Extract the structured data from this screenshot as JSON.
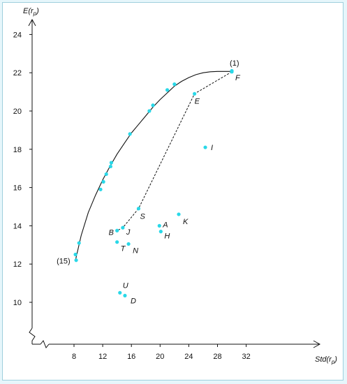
{
  "chart_data": {
    "type": "scatter",
    "xlabel": "Std(r",
    "xlabel_sub": "p",
    "xlabel_close": ")",
    "ylabel": "E(r",
    "ylabel_sub": "p",
    "ylabel_close": ")",
    "xlim": [
      4.5,
      33.5
    ],
    "ylim": [
      7.3,
      25.0
    ],
    "axis_break": true,
    "xticks": [
      8,
      12,
      16,
      20,
      24,
      28,
      32
    ],
    "yticks": [
      10,
      12,
      14,
      16,
      18,
      20,
      22,
      24
    ],
    "xtick_labels": [
      "8",
      "12",
      "16",
      "20",
      "24",
      "28",
      "32"
    ],
    "ytick_labels": [
      "10",
      "12",
      "14",
      "16",
      "18",
      "20",
      "22",
      "24"
    ],
    "point_color": "#29d8e8",
    "frontier_points": [
      {
        "x": 8.3,
        "y": 12.2
      },
      {
        "x": 8.2,
        "y": 12.5
      },
      {
        "x": 8.7,
        "y": 13.1
      },
      {
        "x": 11.7,
        "y": 15.9
      },
      {
        "x": 12.1,
        "y": 16.3
      },
      {
        "x": 12.5,
        "y": 16.7
      },
      {
        "x": 13.1,
        "y": 17.1
      },
      {
        "x": 13.2,
        "y": 17.3
      },
      {
        "x": 15.8,
        "y": 18.8
      },
      {
        "x": 18.5,
        "y": 20.0
      },
      {
        "x": 19.0,
        "y": 20.3
      },
      {
        "x": 21.0,
        "y": 21.1
      },
      {
        "x": 22.0,
        "y": 21.4
      },
      {
        "x": 30.0,
        "y": 22.1
      }
    ],
    "frontier_curve": [
      {
        "x": 8.2,
        "y": 12.2
      },
      {
        "x": 9.0,
        "y": 13.5
      },
      {
        "x": 10.0,
        "y": 14.7
      },
      {
        "x": 11.0,
        "y": 15.6
      },
      {
        "x": 12.0,
        "y": 16.4
      },
      {
        "x": 13.0,
        "y": 17.1
      },
      {
        "x": 14.0,
        "y": 17.75
      },
      {
        "x": 15.0,
        "y": 18.3
      },
      {
        "x": 16.0,
        "y": 18.85
      },
      {
        "x": 17.0,
        "y": 19.3
      },
      {
        "x": 18.0,
        "y": 19.75
      },
      {
        "x": 19.0,
        "y": 20.2
      },
      {
        "x": 20.0,
        "y": 20.6
      },
      {
        "x": 21.0,
        "y": 20.95
      },
      {
        "x": 22.0,
        "y": 21.3
      },
      {
        "x": 23.0,
        "y": 21.55
      },
      {
        "x": 24.0,
        "y": 21.75
      },
      {
        "x": 25.0,
        "y": 21.9
      },
      {
        "x": 26.0,
        "y": 22.0
      },
      {
        "x": 27.0,
        "y": 22.05
      },
      {
        "x": 28.0,
        "y": 22.07
      },
      {
        "x": 29.0,
        "y": 22.07
      },
      {
        "x": 30.0,
        "y": 22.07
      }
    ],
    "dashed_path": [
      {
        "x": 30.0,
        "y": 22.05
      },
      {
        "x": 24.8,
        "y": 20.9
      },
      {
        "x": 17.0,
        "y": 14.9
      },
      {
        "x": 14.8,
        "y": 13.9
      },
      {
        "x": 14.0,
        "y": 13.75
      }
    ],
    "labeled_points": [
      {
        "label": "F",
        "x": 30.0,
        "y": 22.05,
        "dx": 5,
        "dy": 12
      },
      {
        "label": "E",
        "x": 24.8,
        "y": 20.9,
        "dx": 0,
        "dy": 14
      },
      {
        "label": "I",
        "x": 26.3,
        "y": 18.1,
        "dx": 8,
        "dy": 4
      },
      {
        "label": "K",
        "x": 22.6,
        "y": 14.6,
        "dx": 6,
        "dy": 14
      },
      {
        "label": "A",
        "x": 19.9,
        "y": 14.0,
        "dx": 5,
        "dy": 2
      },
      {
        "label": "H",
        "x": 20.1,
        "y": 13.7,
        "dx": 5,
        "dy": 10
      },
      {
        "label": "S",
        "x": 17.0,
        "y": 14.9,
        "dx": 2,
        "dy": 15
      },
      {
        "label": "J",
        "x": 14.8,
        "y": 13.9,
        "dx": 5,
        "dy": 10
      },
      {
        "label": "B",
        "x": 14.0,
        "y": 13.75,
        "dx": -12,
        "dy": 6
      },
      {
        "label": "T",
        "x": 14.0,
        "y": 13.15,
        "dx": 5,
        "dy": 13
      },
      {
        "label": "N",
        "x": 15.6,
        "y": 13.05,
        "dx": 6,
        "dy": 13
      },
      {
        "label": "U",
        "x": 14.4,
        "y": 10.5,
        "dx": 4,
        "dy": -7
      },
      {
        "label": "D",
        "x": 15.1,
        "y": 10.35,
        "dx": 8,
        "dy": 11
      }
    ],
    "annotations": [
      {
        "text": "(1)",
        "x": 30.0,
        "y": 22.05,
        "dx": -3,
        "dy": -9
      },
      {
        "text": "(15)",
        "x": 8.3,
        "y": 12.2,
        "dx": -28,
        "dy": 5
      }
    ]
  }
}
